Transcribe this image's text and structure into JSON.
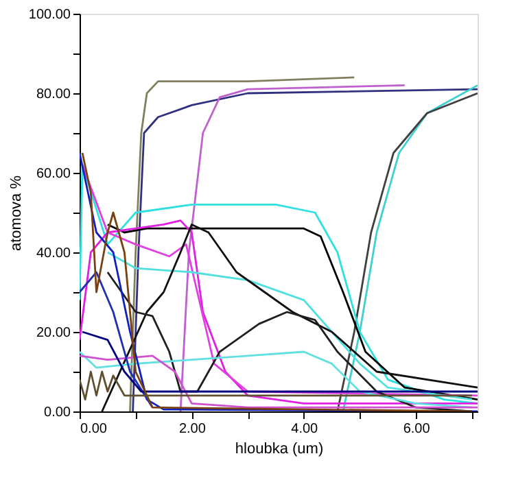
{
  "chart_data": {
    "type": "line",
    "xlabel": "hloubka (um)",
    "ylabel": "atomova %",
    "xlim": [
      0,
      7.1
    ],
    "ylim": [
      0,
      100
    ],
    "xticks": [
      {
        "value": 0,
        "label": "0.00"
      },
      {
        "value": 1,
        "label": null
      },
      {
        "value": 2,
        "label": "2.00"
      },
      {
        "value": 3,
        "label": null
      },
      {
        "value": 4,
        "label": "4.00"
      },
      {
        "value": 5,
        "label": null
      },
      {
        "value": 6,
        "label": "6.00"
      },
      {
        "value": 7,
        "label": null
      }
    ],
    "yticks": [
      {
        "value": 0,
        "label": "0.00"
      },
      {
        "value": 10,
        "label": null
      },
      {
        "value": 20,
        "label": "20.00"
      },
      {
        "value": 30,
        "label": null
      },
      {
        "value": 40,
        "label": "40.00"
      },
      {
        "value": 50,
        "label": null
      },
      {
        "value": 60,
        "label": "60.00"
      },
      {
        "value": 70,
        "label": null
      },
      {
        "value": 80,
        "label": "80.00"
      },
      {
        "value": 90,
        "label": null
      },
      {
        "value": 100,
        "label": "100.00"
      }
    ],
    "grid": false,
    "legend": false,
    "marker": "none",
    "line_style": "solid",
    "series": [
      {
        "color": "#808060",
        "x": [
          0.9,
          1.0,
          1.1,
          1.2,
          1.4,
          3.0,
          4.9
        ],
        "values": [
          0,
          40,
          70,
          80,
          83,
          83,
          84
        ]
      },
      {
        "color": "#303080",
        "x": [
          0.95,
          1.05,
          1.15,
          1.4,
          2.0,
          3.0,
          7.1
        ],
        "values": [
          0,
          40,
          70,
          74,
          77,
          80,
          81
        ]
      },
      {
        "color": "#c060d0",
        "x": [
          1.8,
          1.95,
          2.2,
          2.5,
          3.0,
          5.8
        ],
        "values": [
          0,
          40,
          70,
          79,
          81,
          82
        ]
      },
      {
        "color": "#40d0d0",
        "x": [
          4.7,
          5.0,
          5.3,
          5.7,
          6.2,
          7.1
        ],
        "values": [
          0,
          20,
          45,
          65,
          75,
          82
        ]
      },
      {
        "color": "#404040",
        "x": [
          4.6,
          4.9,
          5.2,
          5.6,
          6.2,
          7.1
        ],
        "values": [
          0,
          20,
          45,
          65,
          75,
          80
        ]
      },
      {
        "color": "#30e0e0",
        "x": [
          0,
          0.05,
          0.5,
          1.0,
          2.0,
          3.5,
          4.2,
          4.6,
          5.0,
          5.5,
          6.5,
          7.1
        ],
        "values": [
          28,
          62,
          42,
          50,
          52,
          52,
          50,
          40,
          20,
          8,
          3,
          2
        ]
      },
      {
        "color": "#000000",
        "x": [
          0.5,
          0.8,
          1.2,
          2.0,
          3.0,
          4.0,
          4.3,
          4.7,
          5.1,
          5.8,
          7.1
        ],
        "values": [
          47,
          45,
          46,
          46,
          46,
          46,
          44,
          30,
          15,
          6,
          3
        ]
      },
      {
        "color": "#e020e0",
        "x": [
          0,
          0.2,
          0.5,
          1.5,
          1.8,
          2.0,
          2.2,
          2.6,
          3.0,
          4.0,
          7.1
        ],
        "values": [
          18,
          40,
          45,
          47,
          48,
          45,
          25,
          10,
          4,
          2,
          2
        ]
      },
      {
        "color": "#e040e0",
        "x": [
          0.05,
          0.5,
          1.0,
          1.6,
          1.9,
          2.1,
          2.4,
          3.0,
          7.1
        ],
        "values": [
          62,
          45,
          42,
          39,
          42,
          30,
          12,
          5,
          4
        ]
      },
      {
        "color": "#50e0e0",
        "x": [
          0.5,
          1.0,
          2.0,
          3.0,
          4.0,
          4.5,
          5.0,
          5.5,
          7.0
        ],
        "values": [
          40,
          36,
          35,
          33,
          28,
          20,
          12,
          6,
          3
        ]
      },
      {
        "color": "#101010",
        "x": [
          0.4,
          1.2,
          1.5,
          1.8,
          2.0,
          2.3,
          2.8,
          3.3,
          3.8,
          4.5,
          5.3,
          7.1
        ],
        "values": [
          0,
          25,
          30,
          40,
          47,
          45,
          35,
          30,
          25,
          20,
          10,
          6
        ]
      },
      {
        "color": "#202020",
        "x": [
          0.5,
          1.0,
          1.3,
          1.6,
          1.8,
          2.1,
          2.5,
          3.2,
          3.7,
          4.2,
          4.6,
          5.3,
          6.0,
          7.0
        ],
        "values": [
          35,
          25,
          24,
          15,
          5,
          5,
          15,
          22,
          25,
          23,
          15,
          5,
          1,
          0
        ]
      },
      {
        "color": "#60e0e0",
        "x": [
          0,
          0.3,
          1.0,
          2.0,
          3.0,
          4.0,
          4.5,
          5.0,
          6.0,
          7.0
        ],
        "values": [
          15,
          11,
          12,
          13,
          14,
          15,
          12,
          5,
          2,
          1
        ]
      },
      {
        "color": "#d050d0",
        "x": [
          0,
          0.5,
          1.3,
          1.7,
          2.0,
          3.0,
          7.1
        ],
        "values": [
          14,
          13,
          14,
          10,
          2,
          1,
          1
        ]
      },
      {
        "color": "#1020c0",
        "x": [
          0,
          0.3,
          0.6,
          0.9,
          1.2,
          1.5,
          7.1
        ],
        "values": [
          65,
          45,
          40,
          20,
          3,
          0.5,
          0
        ]
      },
      {
        "color": "#2030b0",
        "x": [
          0,
          0.3,
          0.6,
          0.9,
          1.3
        ],
        "values": [
          30,
          35,
          25,
          10,
          1
        ]
      },
      {
        "color": "#000080",
        "x": [
          0.05,
          0.5,
          0.8,
          1.1,
          7.1
        ],
        "values": [
          20,
          18,
          10,
          5,
          5
        ]
      },
      {
        "color": "#7a4010",
        "x": [
          0.05,
          0.2,
          0.3,
          0.5,
          0.6,
          0.8,
          1.0,
          1.3,
          7.0
        ],
        "values": [
          65,
          55,
          30,
          45,
          50,
          40,
          10,
          1,
          0
        ]
      },
      {
        "color": "#605030",
        "x": [
          0,
          0.1,
          0.2,
          0.3,
          0.4,
          0.5,
          0.6,
          0.8,
          1.5,
          7.0
        ],
        "values": [
          8,
          3,
          10,
          4,
          10,
          5,
          9,
          4,
          4,
          4
        ]
      }
    ]
  }
}
